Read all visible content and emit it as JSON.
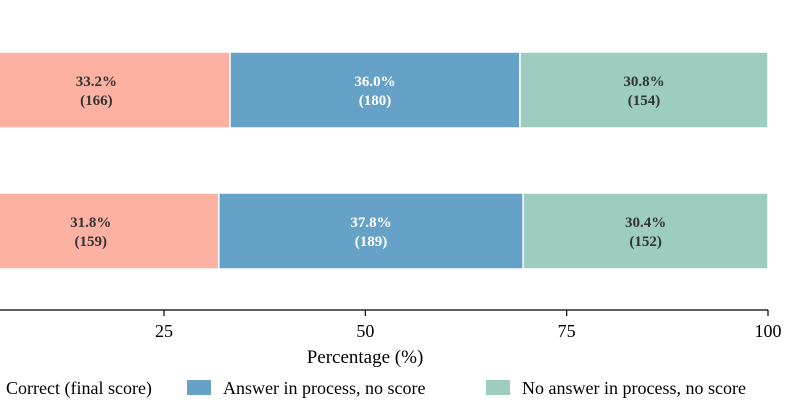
{
  "chart_data": {
    "type": "bar",
    "orientation": "horizontal",
    "stacked": true,
    "xlabel": "Percentage (%)",
    "xlim": [
      0,
      100
    ],
    "xticks": [
      25,
      50,
      75,
      100
    ],
    "grid": false,
    "legend_position": "bottom",
    "bars": [
      {
        "segments": [
          {
            "value": 33.2,
            "label": "33.2%",
            "count_label": "(166)"
          },
          {
            "value": 36.0,
            "label": "36.0%",
            "count_label": "(180)"
          },
          {
            "value": 30.8,
            "label": "30.8%",
            "count_label": "(154)"
          }
        ]
      },
      {
        "segments": [
          {
            "value": 31.8,
            "label": "31.8%",
            "count_label": "(159)"
          },
          {
            "value": 37.8,
            "label": "37.8%",
            "count_label": "(189)"
          },
          {
            "value": 30.4,
            "label": "30.4%",
            "count_label": "(152)"
          }
        ]
      }
    ],
    "series": [
      {
        "name": "Correct (final score)",
        "color": "#fcb1a3",
        "text_color": "#333333"
      },
      {
        "name": "Answer in process, no score",
        "color": "#66a2c7",
        "text_color": "#ffffff"
      },
      {
        "name": "No answer in process, no score",
        "color": "#9dcdc0",
        "text_color": "#333333"
      }
    ]
  }
}
